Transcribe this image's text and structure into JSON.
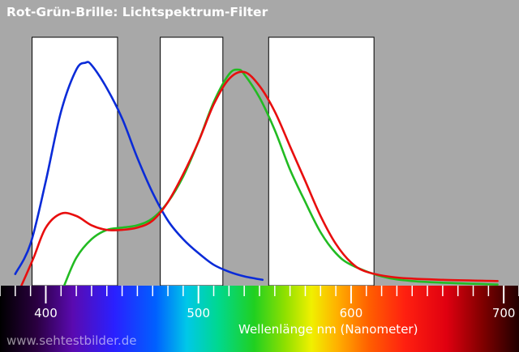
{
  "chart_data": {
    "type": "line",
    "title": "Rot-Grün-Brille: Lichtspektrum-Filter",
    "xlabel": "Wellenlänge nm (Nanometer)",
    "ylabel": "",
    "xlim": [
      370,
      710
    ],
    "x_ticks": [
      400,
      500,
      600,
      700
    ],
    "ylim": [
      0,
      1
    ],
    "grid": false,
    "filter_windows": [
      {
        "start": 391,
        "end": 447
      },
      {
        "start": 475,
        "end": 516
      },
      {
        "start": 546,
        "end": 615
      }
    ],
    "series": [
      {
        "color": "#0a2bd8",
        "points": [
          [
            380,
            0.05
          ],
          [
            390,
            0.18
          ],
          [
            400,
            0.45
          ],
          [
            410,
            0.75
          ],
          [
            420,
            0.93
          ],
          [
            426,
            0.96
          ],
          [
            430,
            0.95
          ],
          [
            440,
            0.85
          ],
          [
            450,
            0.72
          ],
          [
            460,
            0.55
          ],
          [
            470,
            0.4
          ],
          [
            480,
            0.28
          ],
          [
            490,
            0.2
          ],
          [
            500,
            0.14
          ],
          [
            510,
            0.09
          ],
          [
            520,
            0.06
          ],
          [
            530,
            0.04
          ],
          [
            542,
            0.025
          ]
        ]
      },
      {
        "color": "#22bb22",
        "points": [
          [
            412,
            0.0
          ],
          [
            420,
            0.12
          ],
          [
            430,
            0.2
          ],
          [
            440,
            0.24
          ],
          [
            450,
            0.25
          ],
          [
            460,
            0.26
          ],
          [
            470,
            0.29
          ],
          [
            480,
            0.36
          ],
          [
            490,
            0.47
          ],
          [
            500,
            0.62
          ],
          [
            510,
            0.79
          ],
          [
            520,
            0.91
          ],
          [
            526,
            0.93
          ],
          [
            530,
            0.91
          ],
          [
            540,
            0.81
          ],
          [
            550,
            0.67
          ],
          [
            560,
            0.5
          ],
          [
            570,
            0.36
          ],
          [
            580,
            0.23
          ],
          [
            590,
            0.14
          ],
          [
            600,
            0.09
          ],
          [
            620,
            0.04
          ],
          [
            640,
            0.02
          ],
          [
            670,
            0.01
          ],
          [
            696,
            0.005
          ]
        ]
      },
      {
        "color": "#e80e0e",
        "points": [
          [
            384,
            0.0
          ],
          [
            392,
            0.12
          ],
          [
            400,
            0.25
          ],
          [
            410,
            0.31
          ],
          [
            420,
            0.3
          ],
          [
            430,
            0.26
          ],
          [
            440,
            0.24
          ],
          [
            450,
            0.24
          ],
          [
            460,
            0.25
          ],
          [
            470,
            0.28
          ],
          [
            480,
            0.36
          ],
          [
            490,
            0.48
          ],
          [
            500,
            0.62
          ],
          [
            510,
            0.78
          ],
          [
            520,
            0.89
          ],
          [
            530,
            0.92
          ],
          [
            540,
            0.86
          ],
          [
            550,
            0.75
          ],
          [
            560,
            0.6
          ],
          [
            570,
            0.45
          ],
          [
            580,
            0.3
          ],
          [
            590,
            0.18
          ],
          [
            600,
            0.1
          ],
          [
            610,
            0.06
          ],
          [
            630,
            0.035
          ],
          [
            660,
            0.025
          ],
          [
            696,
            0.02
          ]
        ]
      }
    ]
  },
  "watermark": "www.sehtestbilder.de"
}
